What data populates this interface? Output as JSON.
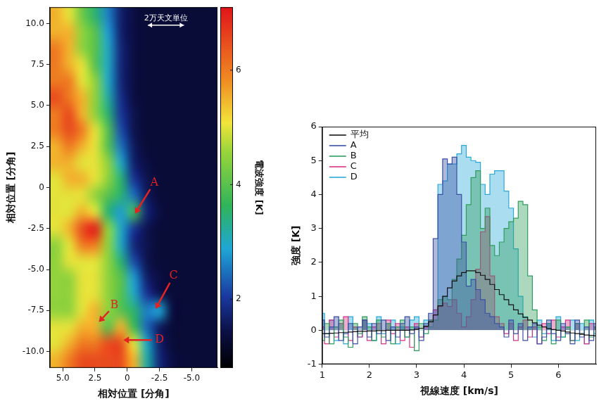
{
  "chart_data": [
    {
      "type": "heatmap",
      "xlabel": "相対位置 [分角]",
      "ylabel": "相対位置 [分角]",
      "x": [
        5.5,
        4.5,
        3.5,
        2.5,
        1.5,
        0.5,
        -0.5,
        -1.5,
        -2.5,
        -3.5,
        -4.5,
        -5.5,
        -6.5
      ],
      "y": [
        10.5,
        9.5,
        8.5,
        7.5,
        6.5,
        5.5,
        4.5,
        3.5,
        2.5,
        1.5,
        0.5,
        -0.5,
        -1.5,
        -2.5,
        -3.5,
        -4.5,
        -5.5,
        -6.5,
        -7.5,
        -8.5,
        -9.5,
        -10.5
      ],
      "cells": [
        [
          5.5,
          5.0,
          4.2,
          3.5,
          2.6,
          1.7,
          1.4,
          1.3,
          1.3,
          1.3,
          1.3,
          1.3,
          1.3
        ],
        [
          5.5,
          5.5,
          4.5,
          4.0,
          2.8,
          1.7,
          1.4,
          1.3,
          1.3,
          1.3,
          1.3,
          1.3,
          1.3
        ],
        [
          6.0,
          5.5,
          4.5,
          4.0,
          3.0,
          1.8,
          1.4,
          1.3,
          1.3,
          1.3,
          1.3,
          1.3,
          1.3
        ],
        [
          6.0,
          5.5,
          5.0,
          4.0,
          3.0,
          1.8,
          1.4,
          1.3,
          1.3,
          1.3,
          1.3,
          1.3,
          1.3
        ],
        [
          6.0,
          6.0,
          5.0,
          4.5,
          3.0,
          1.8,
          1.4,
          1.3,
          1.3,
          1.3,
          1.3,
          1.3,
          1.3
        ],
        [
          6.5,
          6.0,
          5.5,
          4.5,
          3.2,
          1.9,
          1.4,
          1.3,
          1.3,
          1.3,
          1.3,
          1.3,
          1.3
        ],
        [
          6.0,
          6.5,
          5.5,
          4.5,
          3.5,
          2.0,
          1.5,
          1.3,
          1.3,
          1.3,
          1.3,
          1.3,
          1.3
        ],
        [
          6.0,
          6.5,
          6.0,
          5.0,
          4.0,
          2.2,
          1.5,
          1.3,
          1.3,
          1.3,
          1.3,
          1.3,
          1.3
        ],
        [
          5.5,
          6.0,
          5.5,
          5.0,
          4.0,
          2.5,
          1.6,
          1.3,
          1.3,
          1.3,
          1.3,
          1.3,
          1.3
        ],
        [
          5.5,
          5.5,
          5.0,
          5.0,
          4.5,
          3.0,
          1.7,
          1.4,
          1.3,
          1.3,
          1.3,
          1.3,
          1.3
        ],
        [
          5.0,
          5.5,
          5.5,
          5.0,
          4.5,
          3.5,
          2.0,
          1.5,
          1.3,
          1.3,
          1.3,
          1.3,
          1.3
        ],
        [
          5.0,
          5.0,
          5.0,
          4.5,
          4.0,
          3.5,
          2.5,
          1.6,
          1.3,
          1.3,
          1.3,
          1.3,
          1.3
        ],
        [
          5.0,
          5.0,
          5.5,
          5.0,
          3.5,
          2.8,
          3.8,
          1.8,
          1.4,
          1.3,
          1.3,
          1.3,
          1.3
        ],
        [
          5.0,
          5.5,
          6.5,
          7.0,
          4.5,
          3.0,
          2.0,
          1.5,
          1.3,
          1.3,
          1.3,
          1.3,
          1.3
        ],
        [
          4.5,
          5.0,
          6.0,
          6.0,
          4.5,
          3.0,
          1.8,
          1.5,
          1.3,
          1.3,
          1.3,
          1.3,
          1.3
        ],
        [
          4.5,
          5.0,
          5.0,
          5.0,
          4.5,
          3.5,
          2.2,
          1.5,
          1.3,
          1.3,
          1.3,
          1.3,
          1.3
        ],
        [
          4.5,
          4.5,
          5.0,
          5.0,
          4.5,
          4.0,
          2.8,
          1.7,
          1.4,
          1.3,
          1.3,
          1.3,
          1.3
        ],
        [
          4.5,
          4.5,
          5.0,
          5.0,
          4.5,
          4.0,
          3.0,
          2.0,
          1.5,
          1.3,
          1.3,
          1.3,
          1.3
        ],
        [
          4.5,
          4.5,
          5.0,
          5.5,
          4.5,
          4.0,
          3.5,
          2.6,
          2.9,
          1.4,
          1.3,
          1.3,
          1.3
        ],
        [
          5.0,
          5.0,
          5.5,
          5.5,
          4.0,
          5.5,
          3.8,
          2.4,
          1.6,
          1.3,
          1.3,
          1.3,
          1.3
        ],
        [
          5.0,
          5.5,
          6.0,
          6.0,
          6.5,
          6.5,
          5.0,
          3.0,
          1.7,
          1.3,
          1.3,
          1.3,
          1.3
        ],
        [
          5.5,
          6.0,
          6.5,
          6.5,
          6.5,
          6.5,
          5.5,
          3.2,
          1.8,
          1.4,
          1.3,
          1.3,
          1.3
        ]
      ],
      "xlim": [
        6,
        -7
      ],
      "ylim": [
        -11,
        11
      ],
      "xticks": [
        {
          "value": 5,
          "label": "5.0"
        },
        2.5,
        0,
        -2.5,
        {
          "value": -5,
          "label": "-5.0"
        }
      ],
      "yticks": [
        {
          "value": 10,
          "label": "10.0"
        },
        7.5,
        {
          "value": 5,
          "label": "5.0"
        },
        2.5,
        0,
        -2.5,
        {
          "value": -5,
          "label": "-5.0"
        },
        -7.5,
        {
          "value": -10,
          "label": "-10.0"
        }
      ],
      "grid": false,
      "colorbar": {
        "label": "電波強度 [K]",
        "range": [
          0.8,
          7.1
        ],
        "ticks": [
          2,
          4,
          6
        ]
      },
      "annotations": [
        {
          "text": "A",
          "x": -0.6,
          "y": -1.6,
          "text_x": -2.1,
          "text_y": 0.3
        },
        {
          "text": "B",
          "x": 2.2,
          "y": -8.2,
          "text_x": 1.0,
          "text_y": -7.2
        },
        {
          "text": "C",
          "x": -2.2,
          "y": -7.4,
          "text_x": -3.6,
          "text_y": -5.4
        },
        {
          "text": "D",
          "x": 0.3,
          "y": -9.3,
          "text_x": -2.5,
          "text_y": -9.3
        }
      ],
      "scale_bar": {
        "label": "2万天文単位",
        "x": [
          -1.6,
          -4.4
        ],
        "y": 9.9
      }
    },
    {
      "type": "line",
      "line_style": "steps",
      "xlabel": "視線速度 [km/s]",
      "ylabel": "強度 [K]",
      "x": [
        1.0,
        1.1,
        1.2,
        1.3,
        1.4,
        1.5,
        1.6,
        1.7,
        1.8,
        1.9,
        2.0,
        2.1,
        2.2,
        2.3,
        2.4,
        2.5,
        2.6,
        2.7,
        2.8,
        2.9,
        3.0,
        3.1,
        3.2,
        3.3,
        3.4,
        3.5,
        3.6,
        3.7,
        3.8,
        3.9,
        4.0,
        4.1,
        4.2,
        4.3,
        4.4,
        4.5,
        4.6,
        4.7,
        4.8,
        4.9,
        5.0,
        5.1,
        5.2,
        5.3,
        5.4,
        5.5,
        5.6,
        5.7,
        5.8,
        5.9,
        6.0,
        6.1,
        6.2,
        6.3,
        6.4,
        6.5,
        6.6,
        6.7,
        6.8
      ],
      "series": [
        {
          "name": "平均",
          "color": "#111111",
          "type": "line",
          "values": [
            -0.1,
            -0.1,
            -0.09,
            -0.08,
            -0.07,
            -0.06,
            -0.05,
            -0.04,
            -0.03,
            -0.03,
            -0.02,
            -0.02,
            -0.01,
            -0.01,
            0,
            0,
            0,
            0,
            0,
            0.01,
            0.03,
            0.06,
            0.12,
            0.25,
            0.45,
            0.72,
            1.0,
            1.25,
            1.45,
            1.6,
            1.7,
            1.75,
            1.75,
            1.7,
            1.62,
            1.5,
            1.35,
            1.2,
            1.05,
            0.9,
            0.75,
            0.6,
            0.48,
            0.38,
            0.3,
            0.22,
            0.15,
            0.1,
            0.05,
            0.02,
            0,
            -0.02,
            -0.05,
            -0.08,
            -0.1,
            -0.12,
            -0.14,
            -0.15,
            -0.16
          ]
        },
        {
          "name": "A",
          "color": "#3b4fa3",
          "type": "area",
          "values": [
            0.3,
            -0.2,
            0.1,
            0.4,
            -0.3,
            -0.1,
            0.2,
            -0.4,
            0.1,
            0.3,
            -0.2,
            0.2,
            -0.1,
            0.3,
            -0.3,
            0.1,
            -0.2,
            0.2,
            0.4,
            -0.1,
            0.1,
            -0.3,
            0.2,
            0.5,
            2.7,
            4.0,
            5.05,
            4.9,
            5.1,
            4.0,
            2.6,
            1.3,
            1.5,
            1.2,
            0.9,
            0.5,
            0.4,
            0.2,
            0.1,
            -0.2,
            0.3,
            -0.1,
            0.2,
            -0.3,
            0.1,
            0.2,
            -0.4,
            -0.2,
            0.3,
            -0.1,
            -0.3,
            0.2,
            -0.1,
            -0.4,
            0.3,
            -0.2,
            0.1,
            -0.3,
            0.2
          ]
        },
        {
          "name": "B",
          "color": "#2f9d5c",
          "type": "area",
          "values": [
            -0.3,
            0.2,
            -0.4,
            0.1,
            0.3,
            -0.2,
            -0.5,
            0.2,
            -0.1,
            0.4,
            0.1,
            -0.3,
            0.3,
            -0.2,
            0.2,
            -0.4,
            0.1,
            0.3,
            -0.2,
            0.1,
            -0.6,
            0.2,
            -0.1,
            0.3,
            0.3,
            0.9,
            1.0,
            0.9,
            1.5,
            2.1,
            2.8,
            3.7,
            4.5,
            4.7,
            3.0,
            3.6,
            2.5,
            2.2,
            2.6,
            3.0,
            3.2,
            3.3,
            3.8,
            3.7,
            1.6,
            0.6,
            0.1,
            -0.3,
            0.2,
            -0.4,
            0.3,
            -0.2,
            0.1,
            -0.3,
            0.2,
            -0.1,
            0.3,
            -0.2,
            0.1
          ]
        },
        {
          "name": "C",
          "color": "#d63384",
          "type": "area",
          "values": [
            0.1,
            -0.4,
            0.3,
            -0.2,
            0.2,
            0.4,
            -0.3,
            0.1,
            -0.2,
            0.3,
            -0.3,
            0.1,
            0.2,
            -0.4,
            0.3,
            -0.1,
            0.2,
            -0.3,
            0.1,
            -0.5,
            0.2,
            -0.2,
            0.1,
            0.3,
            0.6,
            0.7,
            0.8,
            0.7,
            0.9,
            0.5,
            0.1,
            0.4,
            0.9,
            1.8,
            2.9,
            3.35,
            1.6,
            0.4,
            0.2,
            -0.1,
            0.2,
            -0.3,
            0.1,
            0.3,
            -0.2,
            0.1,
            -0.4,
            0.2,
            -0.1,
            0.3,
            -0.2,
            0.1,
            0.3,
            -0.3,
            0.2,
            -0.1,
            -0.4,
            0.2,
            0.1
          ]
        },
        {
          "name": "D",
          "color": "#2aa9d9",
          "type": "area",
          "values": [
            0.5,
            -0.1,
            0.3,
            -0.3,
            0.2,
            -0.4,
            0.4,
            0.1,
            -0.2,
            0.3,
            0.2,
            -0.3,
            0.4,
            -0.1,
            0.2,
            0.3,
            -0.4,
            0.1,
            -0.2,
            0.3,
            0.4,
            -0.2,
            0.3,
            0.1,
            0.6,
            4.3,
            4.4,
            4.9,
            4.9,
            5.2,
            5.45,
            5.1,
            5.0,
            4.95,
            4.3,
            4.0,
            4.6,
            4.7,
            4.7,
            4.1,
            3.6,
            2.4,
            1.0,
            0.4,
            0.1,
            -0.2,
            0.3,
            -0.1,
            0.2,
            -0.3,
            0.4,
            -0.2,
            0.1,
            0.3,
            -0.3,
            0.2,
            -0.4,
            0.3,
            -0.1
          ]
        }
      ],
      "xlim": [
        1,
        6.8
      ],
      "xticks": [
        1,
        2,
        3,
        4,
        5,
        6
      ],
      "ylim": [
        -1,
        6
      ],
      "yticks": [
        -1,
        0,
        1,
        2,
        3,
        4,
        5,
        6
      ],
      "grid": false,
      "legend": "upper left"
    }
  ]
}
